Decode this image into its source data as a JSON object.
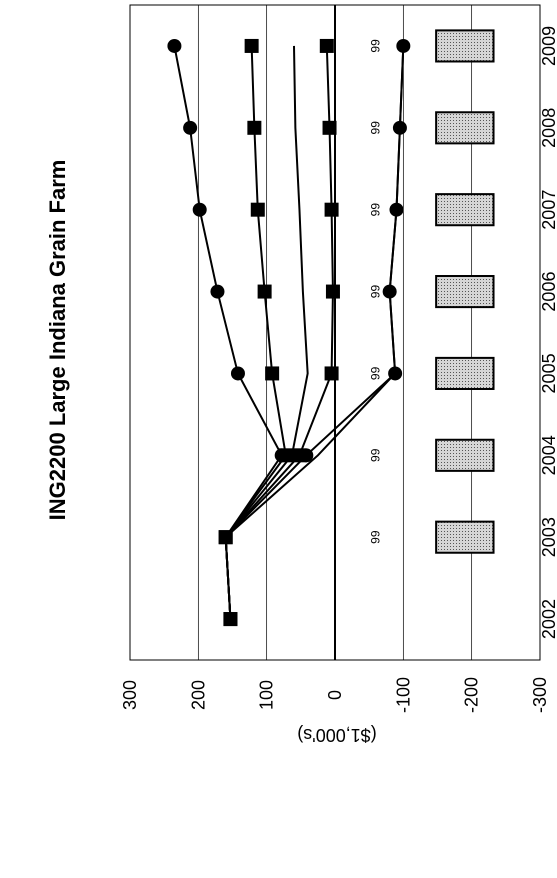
{
  "chart_data": {
    "type": "line",
    "orientation": "rotated-90-ccw",
    "title": "ING2200  Large Indiana Grain Farm",
    "ylabel": "($1,000's)",
    "xlabel": "",
    "ylim": [
      -300,
      300
    ],
    "y_ticks": [
      "300",
      "200",
      "100",
      "0",
      "-100",
      "-200",
      "-300"
    ],
    "y_tick_values": [
      300,
      200,
      100,
      0,
      -100,
      -200,
      -300
    ],
    "categories": [
      "2002",
      "2003",
      "2004",
      "2005",
      "2006",
      "2007",
      "2008",
      "2009"
    ],
    "grid": true,
    "bar_annotation": "99",
    "bars": {
      "categories": [
        "2003",
        "2004",
        "2005",
        "2006",
        "2007",
        "2008",
        "2009"
      ],
      "values": [
        -200,
        -200,
        -200,
        -200,
        -200,
        -200,
        -200
      ],
      "labels": [
        "99",
        "99",
        "99",
        "99",
        "99",
        "99",
        "99"
      ]
    },
    "series": [
      {
        "values": [
          153,
          160,
          78,
          142,
          172,
          198,
          212,
          235
        ],
        "marker": "circle"
      },
      {
        "values": [
          153,
          160,
          72,
          92,
          103,
          113,
          118,
          122
        ],
        "marker": "square"
      },
      {
        "values": [
          153,
          160,
          63,
          40,
          47,
          52,
          58,
          60
        ],
        "marker": "none"
      },
      {
        "values": [
          153,
          160,
          52,
          5,
          3,
          5,
          8,
          12
        ],
        "marker": "square"
      },
      {
        "values": [
          153,
          160,
          42,
          -88,
          -80,
          -90,
          -95,
          -100
        ],
        "marker": "circle"
      },
      {
        "values": [
          153,
          160,
          25,
          -88,
          -80,
          -90,
          -95,
          -100
        ],
        "marker": "none"
      }
    ],
    "colors": {
      "line": "#000000",
      "bar_fill": "#d6d6d6",
      "grid": "#000000"
    }
  }
}
